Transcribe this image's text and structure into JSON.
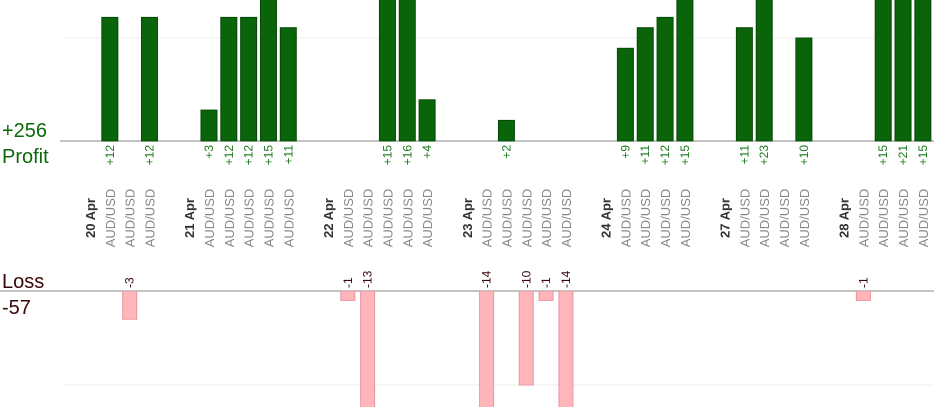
{
  "chart_data": {
    "type": "bar",
    "profit_total": "+256",
    "profit_label": "Profit",
    "loss_label": "Loss",
    "loss_total": "-57",
    "categories": [
      "20 Apr",
      "AUD/USD",
      "AUD/USD",
      "AUD/USD",
      null,
      "21 Apr",
      "AUD/USD",
      "AUD/USD",
      "AUD/USD",
      "AUD/USD",
      "AUD/USD",
      null,
      "22 Apr",
      "AUD/USD",
      "AUD/USD",
      "AUD/USD",
      "AUD/USD",
      "AUD/USD",
      null,
      "23 Apr",
      "AUD/USD",
      "AUD/USD",
      "AUD/USD",
      "AUD/USD",
      "AUD/USD",
      null,
      "24 Apr",
      "AUD/USD",
      "AUD/USD",
      "AUD/USD",
      "AUD/USD",
      null,
      "27 Apr",
      "AUD/USD",
      "AUD/USD",
      "AUD/USD",
      "AUD/USD",
      null,
      "28 Apr",
      "AUD/USD",
      "AUD/USD",
      "AUD/USD",
      "AUD/USD"
    ],
    "values": [
      null,
      12,
      -3,
      12,
      null,
      null,
      3,
      12,
      12,
      15,
      11,
      null,
      null,
      -1,
      -13,
      15,
      16,
      4,
      null,
      null,
      -14,
      2,
      -10,
      -1,
      -14,
      null,
      null,
      9,
      11,
      12,
      15,
      null,
      null,
      11,
      23,
      null,
      10,
      null,
      null,
      -1,
      15,
      21,
      15
    ],
    "value_labels": [
      null,
      "+12",
      "-3",
      "+12",
      null,
      null,
      "+3",
      "+12",
      "+12",
      "+15",
      "+11",
      null,
      null,
      "-1",
      "-13",
      "+15",
      "+16",
      "+4",
      null,
      null,
      "-14",
      "+2",
      "-10",
      "-1",
      "-14",
      null,
      null,
      "+9",
      "+11",
      "+12",
      "+15",
      null,
      null,
      "+11",
      "+23",
      null,
      "+10",
      null,
      null,
      "-1",
      "+15",
      "+21",
      "+15"
    ],
    "profit_color": "#0a640a",
    "loss_color": "#ffb6bb"
  }
}
